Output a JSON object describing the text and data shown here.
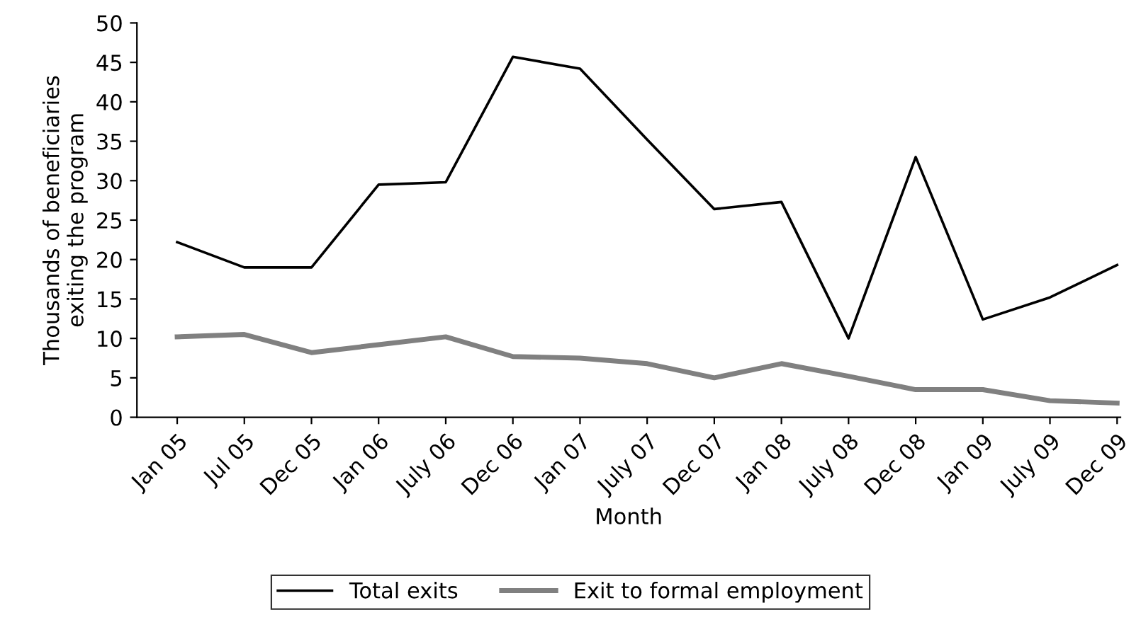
{
  "chart_data": {
    "type": "line",
    "xlabel": "Month",
    "ylabel": "Thousands of beneficiaries\nexiting the program",
    "categories": [
      "Jan 05",
      "Jul 05",
      "Dec 05",
      "Jan 06",
      "July 06",
      "Dec 06",
      "Jan 07",
      "July 07",
      "Dec 07",
      "Jan 08",
      "July 08",
      "Dec 08",
      "Jan 09",
      "July 09",
      "Dec 09"
    ],
    "series": [
      {
        "name": "Total exits",
        "color": "#000000",
        "values": [
          22.2,
          19,
          19,
          29.5,
          29.8,
          45.7,
          44.2,
          35.2,
          26.4,
          27.3,
          10,
          33,
          12.4,
          15.2,
          19.3
        ]
      },
      {
        "name": "Exit to formal employment",
        "color": "#808080",
        "values": [
          10.2,
          10.5,
          8.2,
          9.2,
          10.2,
          7.7,
          7.5,
          6.8,
          5,
          6.8,
          5.2,
          3.5,
          3.5,
          2.1,
          1.8
        ]
      }
    ],
    "ylim": [
      0,
      50
    ],
    "yticks": [
      0,
      5,
      10,
      15,
      20,
      25,
      30,
      35,
      40,
      45,
      50
    ],
    "grid": false,
    "legend": "bottom",
    "marker": "none",
    "line_style": "solid"
  }
}
